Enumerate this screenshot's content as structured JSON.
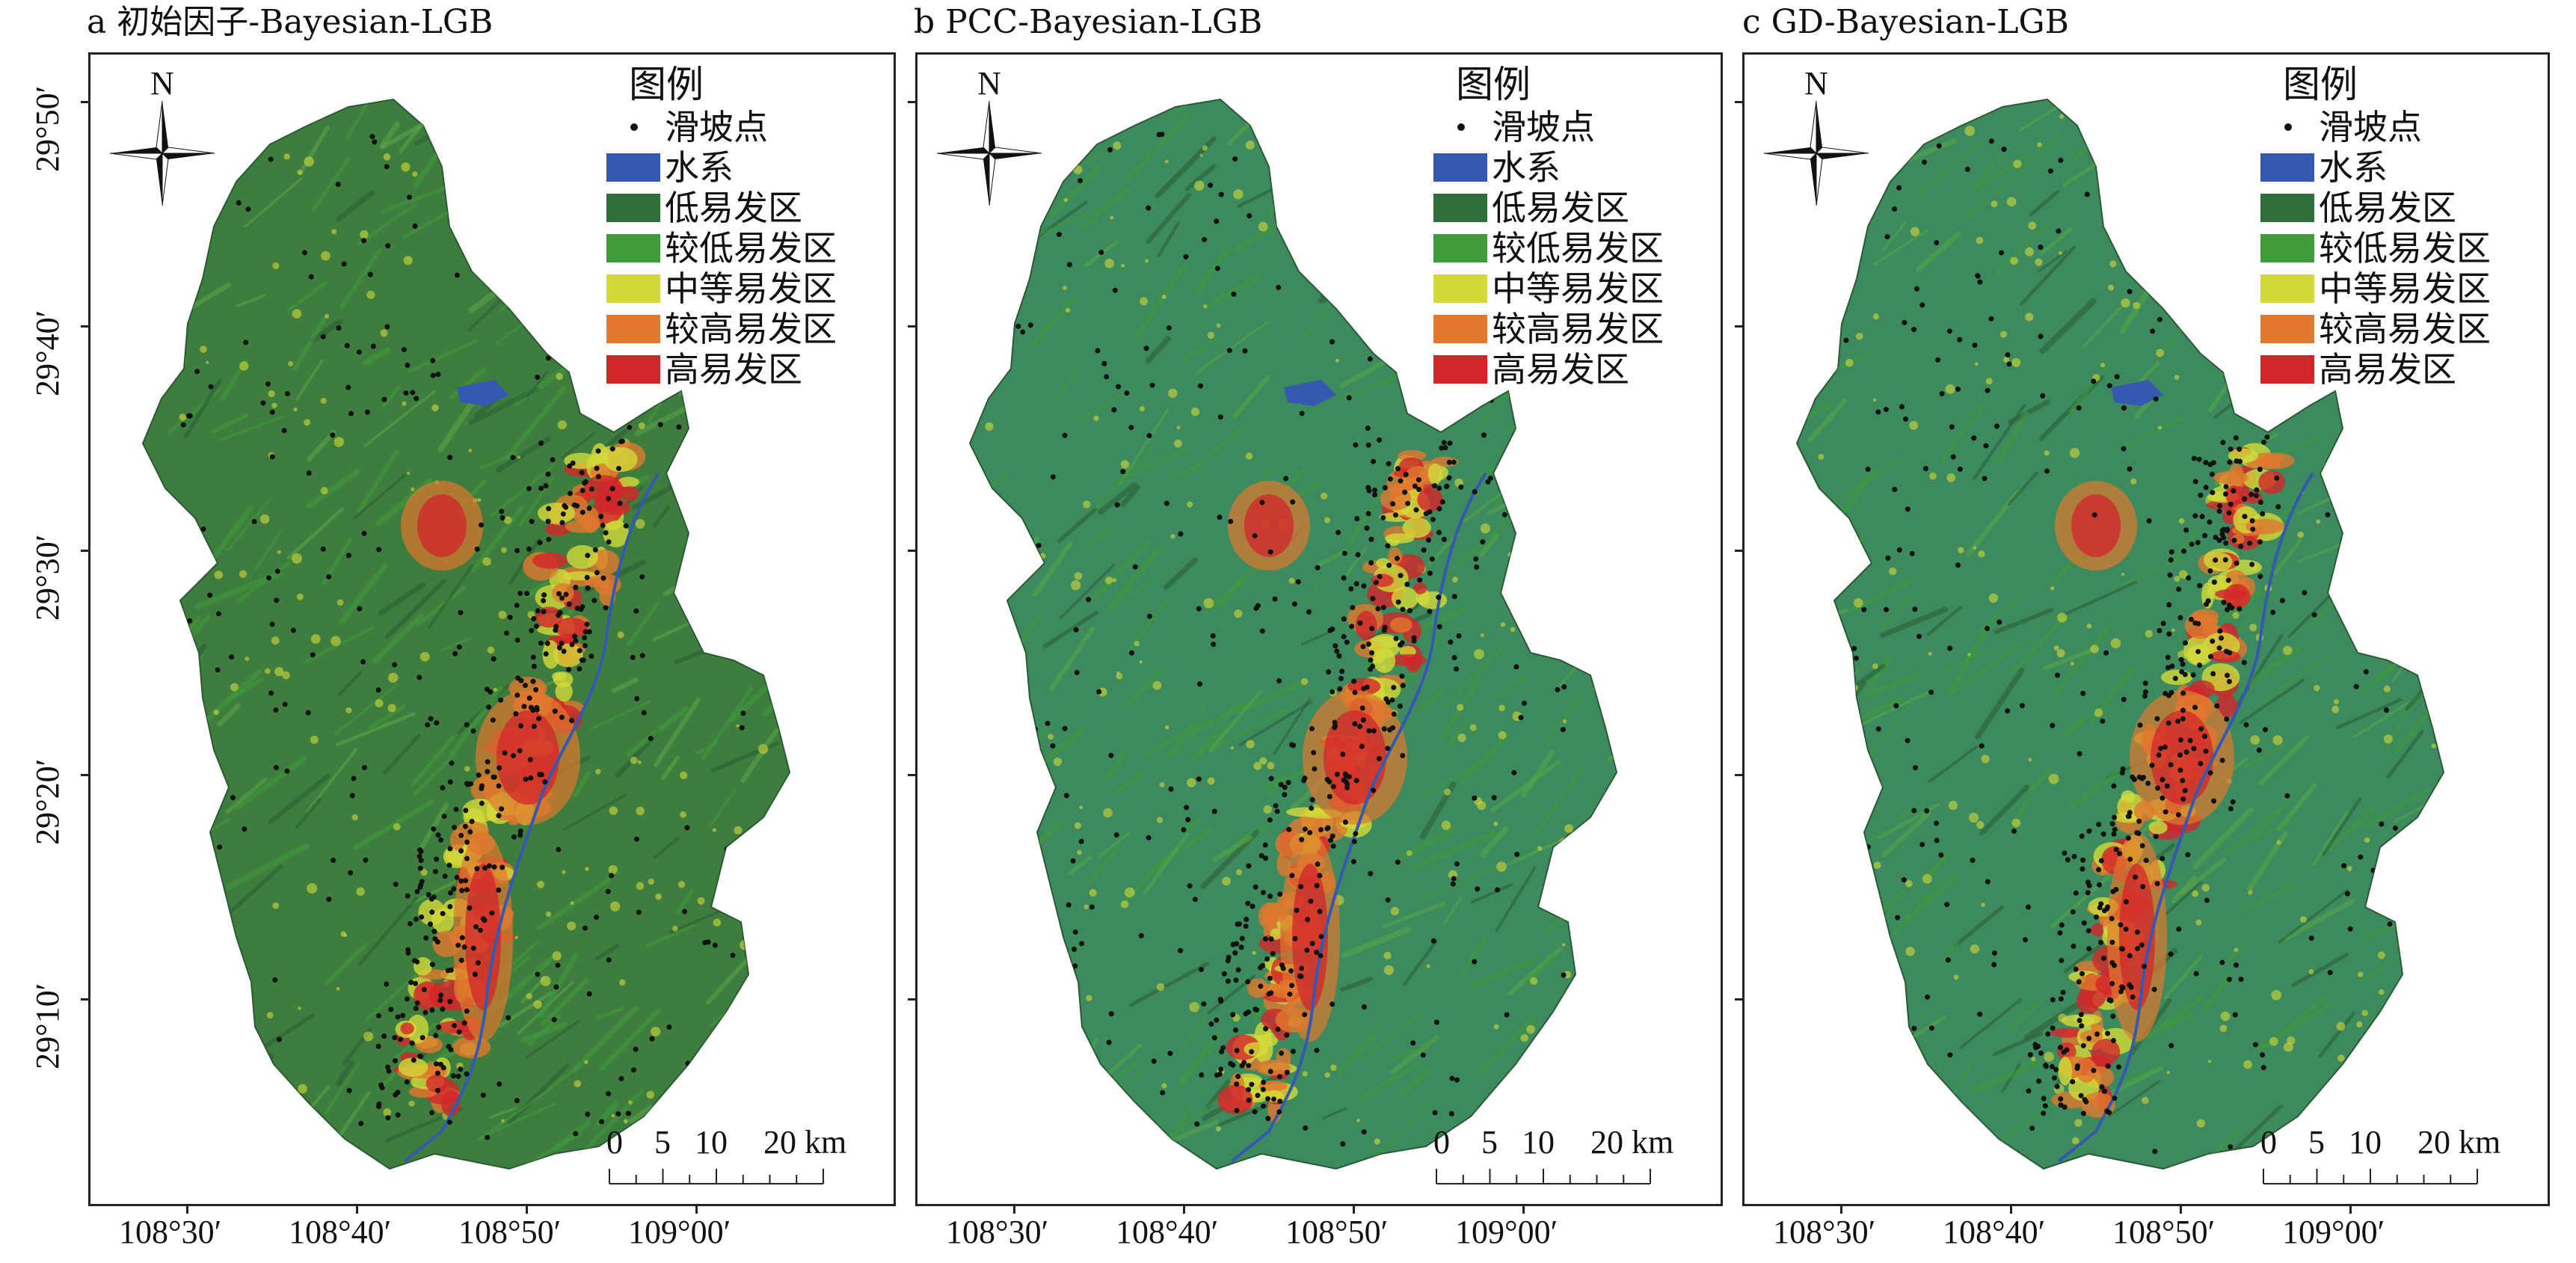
{
  "panels": [
    {
      "label": "a 初始因子-Bayesian-LGB",
      "variant": "a"
    },
    {
      "label": "b  PCC-Bayesian-LGB",
      "variant": "b"
    },
    {
      "label": "c  GD-Bayesian-LGB",
      "variant": "c"
    }
  ],
  "north_label": "N",
  "legend": {
    "title": "图例",
    "items": [
      {
        "label": "滑坡点",
        "type": "point",
        "color": "#111111"
      },
      {
        "label": "水系",
        "type": "patch",
        "color": "#3558b0"
      },
      {
        "label": "低易发区",
        "type": "patch",
        "color": "#2f6d3a"
      },
      {
        "label": "较低易发区",
        "type": "patch",
        "color": "#3e9c3b"
      },
      {
        "label": "中等易发区",
        "type": "patch",
        "color": "#d2d93a"
      },
      {
        "label": "较高易发区",
        "type": "patch",
        "color": "#e0782e"
      },
      {
        "label": "高易发区",
        "type": "patch",
        "color": "#d3262b"
      }
    ]
  },
  "scalebar": {
    "labels": [
      "0",
      "5",
      "10",
      "20 km"
    ]
  },
  "y_ticks": [
    "29°50′",
    "29°40′",
    "29°30′",
    "29°20′",
    "29°10′"
  ],
  "x_ticks": [
    "108°30′",
    "108°40′",
    "108°50′",
    "109°00′"
  ],
  "colors": {
    "low": "#2f6d3a",
    "lower": "#3e9c3b",
    "medium": "#d2d93a",
    "higher": "#e0782e",
    "high": "#d3262b",
    "water": "#3558b0"
  }
}
